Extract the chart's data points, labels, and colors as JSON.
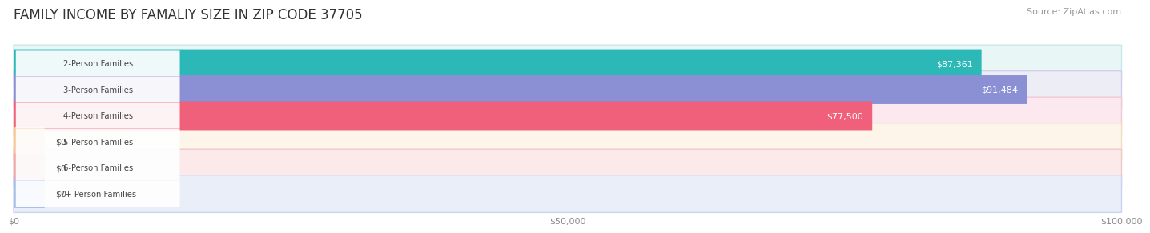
{
  "title": "FAMILY INCOME BY FAMALIY SIZE IN ZIP CODE 37705",
  "source": "Source: ZipAtlas.com",
  "categories": [
    "2-Person Families",
    "3-Person Families",
    "4-Person Families",
    "5-Person Families",
    "6-Person Families",
    "7+ Person Families"
  ],
  "values": [
    87361,
    91484,
    77500,
    0,
    0,
    0
  ],
  "bar_colors": [
    "#2db8b8",
    "#8b8fd4",
    "#f0607a",
    "#f5c899",
    "#f0a8a8",
    "#a8c0e8"
  ],
  "value_labels": [
    "$87,361",
    "$91,484",
    "$77,500",
    "$0",
    "$0",
    "$0"
  ],
  "row_bg_colors": [
    "#e8f6f6",
    "#ededf6",
    "#fce8ef",
    "#fdf4ea",
    "#fce9e9",
    "#e9eef8"
  ],
  "row_border_colors": [
    "#c8e8e8",
    "#d0d0ec",
    "#f0c8d8",
    "#f0dfc0",
    "#f0c8c8",
    "#c8d4f0"
  ],
  "xlim": [
    0,
    100000
  ],
  "xticks": [
    0,
    50000,
    100000
  ],
  "xticklabels": [
    "$0",
    "$50,000",
    "$100,000"
  ],
  "title_fontsize": 12,
  "source_fontsize": 8,
  "ax_bg": "#f8f8f8"
}
